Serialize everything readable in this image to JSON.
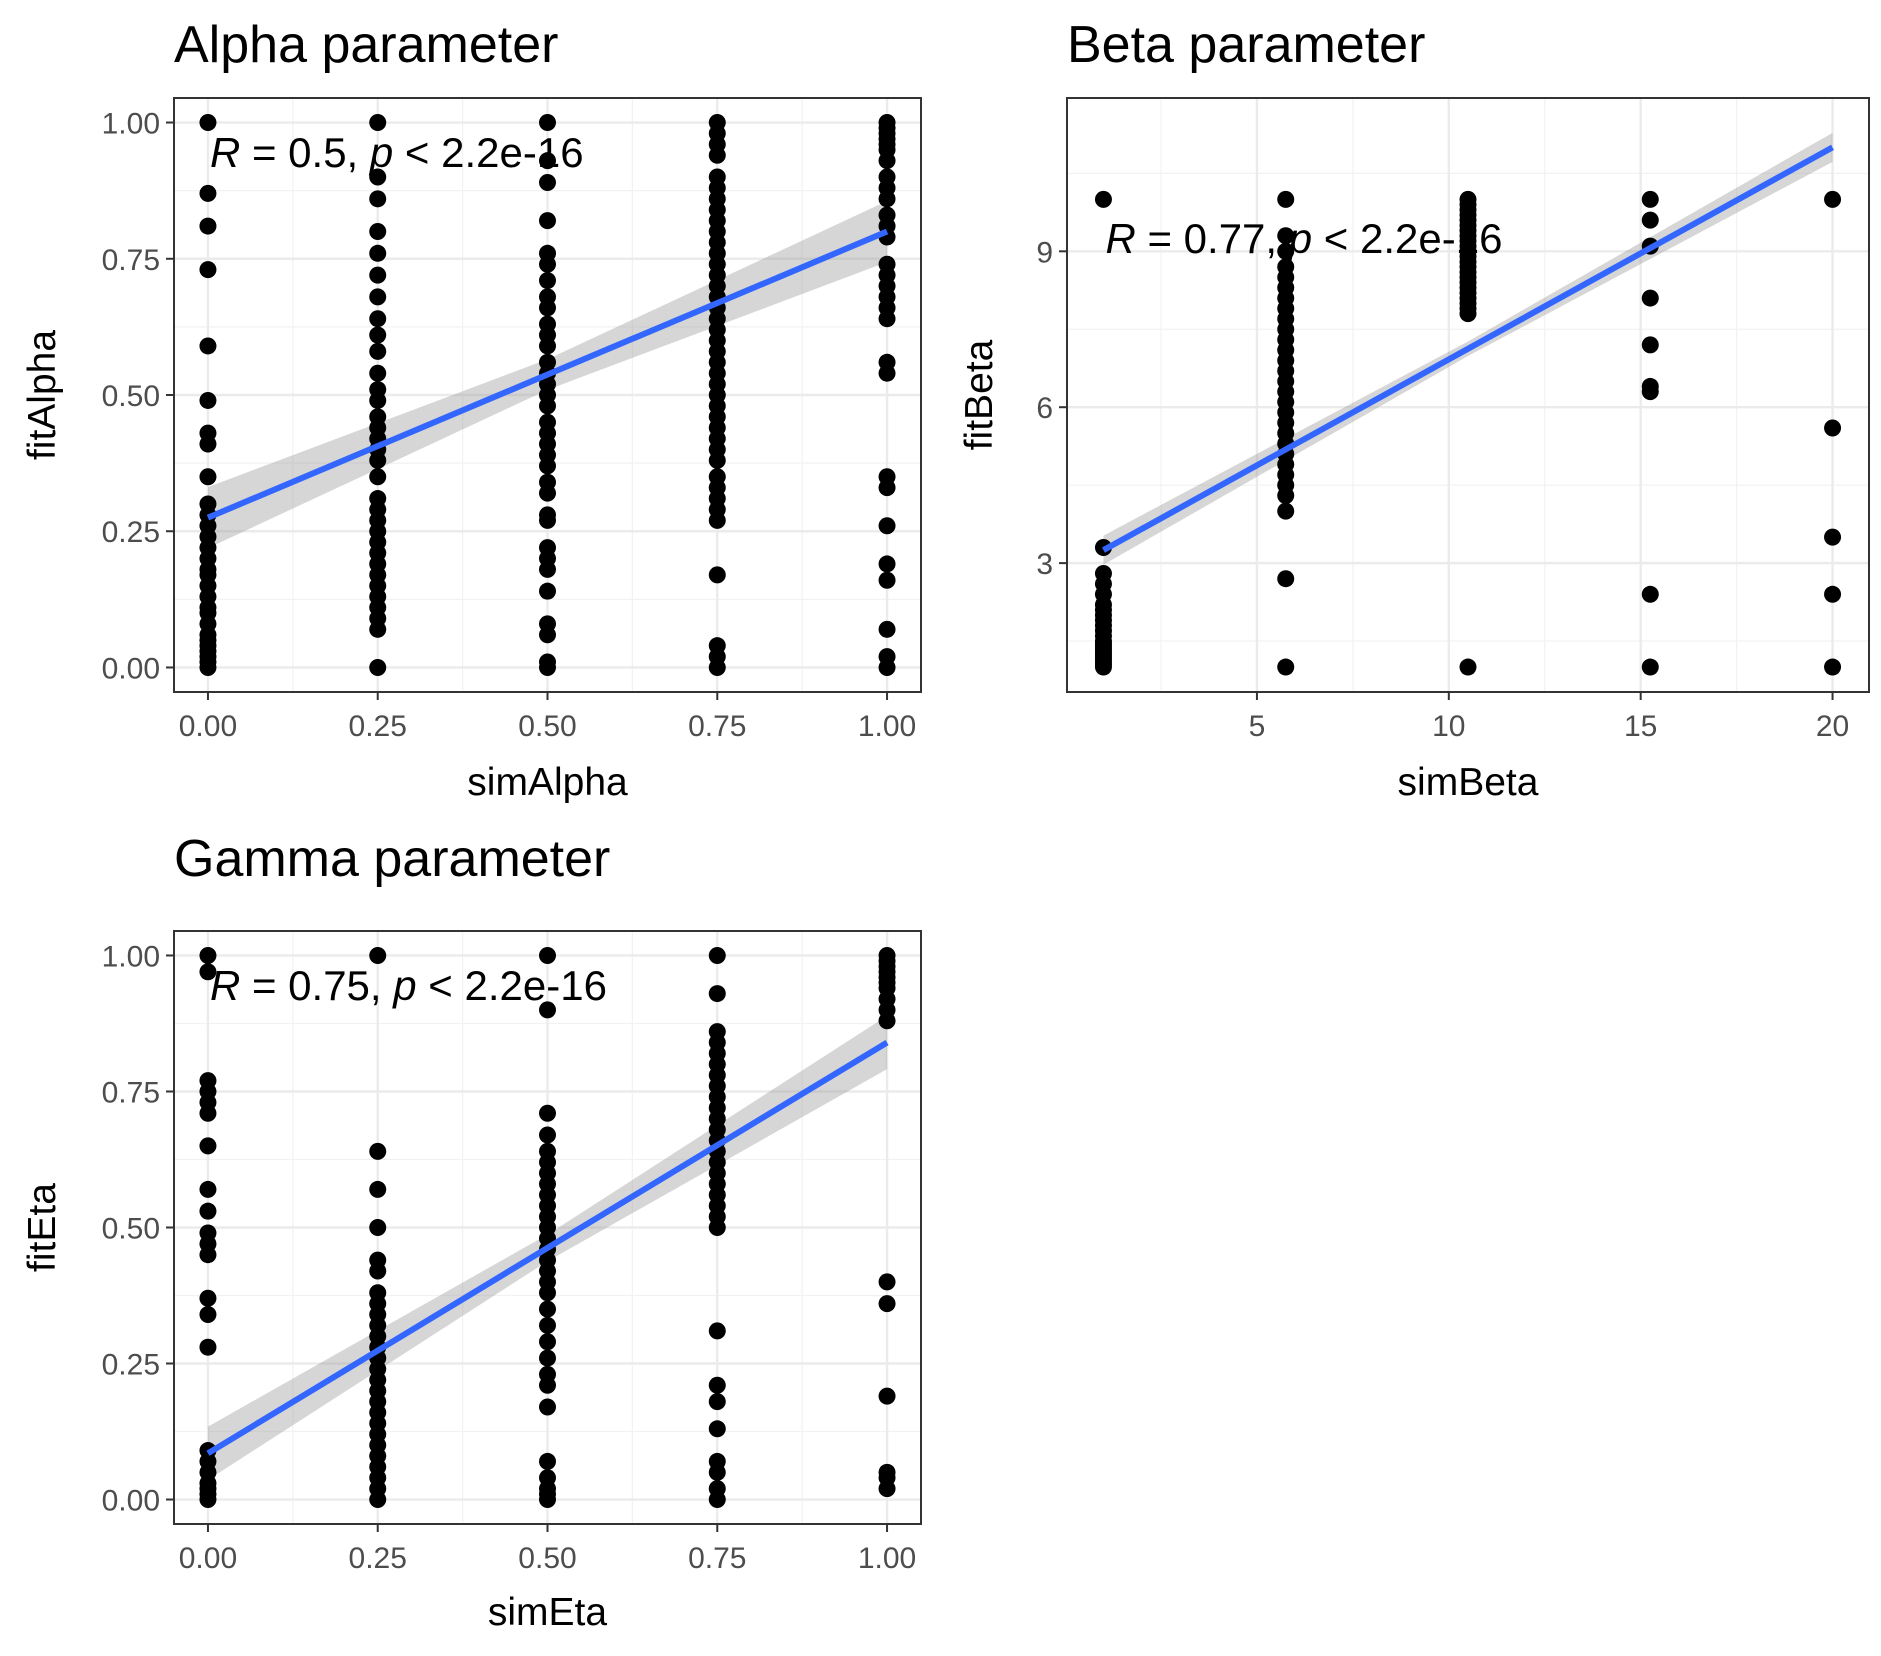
{
  "chart_data": [
    {
      "id": "alpha",
      "type": "scatter",
      "title": "Alpha parameter",
      "xlabel": "simAlpha",
      "ylabel": "fitAlpha",
      "xlim": [
        -0.05,
        1.05
      ],
      "ylim": [
        -0.045,
        1.045
      ],
      "xticks": [
        0,
        0.25,
        0.5,
        0.75,
        1.0
      ],
      "xtick_labels": [
        "0.00",
        "0.25",
        "0.50",
        "0.75",
        "1.00"
      ],
      "yticks": [
        0,
        0.25,
        0.5,
        0.75,
        1.0
      ],
      "ytick_labels": [
        "0.00",
        "0.25",
        "0.50",
        "0.75",
        "1.00"
      ],
      "grid": true,
      "stat_text": {
        "r_symbol": "R",
        "r_part": " = 0.5, ",
        "p_symbol": "p",
        "p_part": " < 2.2e-16",
        "x": 0.0,
        "y": 0.94
      },
      "fit": {
        "x0": 0.0,
        "y0": 0.275,
        "x1": 1.0,
        "y1": 0.8,
        "se": 0.04
      },
      "points": [
        {
          "x": 0.0,
          "y": [
            1.0,
            0.87,
            0.81,
            0.73,
            0.59,
            0.49,
            0.43,
            0.41,
            0.35,
            0.3,
            0.28,
            0.26,
            0.24,
            0.22,
            0.2,
            0.18,
            0.17,
            0.15,
            0.13,
            0.11,
            0.1,
            0.08,
            0.06,
            0.05,
            0.04,
            0.03,
            0.02,
            0.01,
            0.0
          ]
        },
        {
          "x": 0.25,
          "y": [
            1.0,
            0.9,
            0.86,
            0.8,
            0.76,
            0.72,
            0.68,
            0.64,
            0.61,
            0.58,
            0.54,
            0.51,
            0.49,
            0.46,
            0.44,
            0.42,
            0.4,
            0.38,
            0.35,
            0.31,
            0.29,
            0.27,
            0.25,
            0.23,
            0.21,
            0.19,
            0.17,
            0.15,
            0.13,
            0.11,
            0.09,
            0.07,
            0.0
          ]
        },
        {
          "x": 0.5,
          "y": [
            1.0,
            0.93,
            0.89,
            0.82,
            0.76,
            0.74,
            0.71,
            0.68,
            0.66,
            0.63,
            0.61,
            0.59,
            0.56,
            0.54,
            0.52,
            0.5,
            0.48,
            0.45,
            0.43,
            0.41,
            0.39,
            0.37,
            0.34,
            0.32,
            0.28,
            0.27,
            0.22,
            0.2,
            0.18,
            0.14,
            0.08,
            0.06,
            0.01,
            0.0
          ]
        },
        {
          "x": 0.75,
          "y": [
            1.0,
            0.98,
            0.96,
            0.94,
            0.9,
            0.88,
            0.86,
            0.84,
            0.82,
            0.8,
            0.78,
            0.76,
            0.74,
            0.72,
            0.7,
            0.68,
            0.66,
            0.64,
            0.62,
            0.6,
            0.58,
            0.56,
            0.54,
            0.52,
            0.5,
            0.48,
            0.46,
            0.44,
            0.42,
            0.4,
            0.38,
            0.35,
            0.33,
            0.31,
            0.29,
            0.27,
            0.17,
            0.04,
            0.02,
            0.0
          ]
        },
        {
          "x": 1.0,
          "y": [
            1.0,
            0.99,
            0.98,
            0.97,
            0.96,
            0.95,
            0.93,
            0.9,
            0.88,
            0.86,
            0.83,
            0.81,
            0.79,
            0.74,
            0.72,
            0.7,
            0.68,
            0.66,
            0.64,
            0.56,
            0.54,
            0.35,
            0.33,
            0.26,
            0.19,
            0.16,
            0.07,
            0.02,
            0.0
          ]
        }
      ]
    },
    {
      "id": "beta",
      "type": "scatter",
      "title": "Beta parameter",
      "xlabel": "simBeta",
      "ylabel": "fitBeta",
      "xlim": [
        0.05,
        20.95
      ],
      "ylim": [
        0.52,
        11.95
      ],
      "xticks": [
        5,
        10,
        15,
        20
      ],
      "xtick_labels": [
        "5",
        "10",
        "15",
        "20"
      ],
      "yticks": [
        3,
        6,
        9
      ],
      "ytick_labels": [
        "3",
        "6",
        "9"
      ],
      "grid": true,
      "stat_text": {
        "r_symbol": "R",
        "r_part": " = 0.77, ",
        "p_symbol": "p",
        "p_part": " < 2.2e-16",
        "x": 1.0,
        "y": 9.2
      },
      "fit": {
        "x0": 1.0,
        "y0": 3.25,
        "x1": 20.0,
        "y1": 11.0,
        "se": 0.2
      },
      "points": [
        {
          "x": 1.0,
          "y": [
            10.0,
            3.3,
            2.8,
            2.6,
            2.4,
            2.2,
            2.1,
            2.0,
            1.9,
            1.8,
            1.7,
            1.6,
            1.5,
            1.45,
            1.4,
            1.35,
            1.3,
            1.25,
            1.2,
            1.15,
            1.1,
            1.05,
            1.0
          ]
        },
        {
          "x": 5.75,
          "y": [
            10.0,
            9.3,
            9.0,
            8.7,
            8.5,
            8.3,
            8.1,
            7.9,
            7.7,
            7.5,
            7.3,
            7.1,
            6.9,
            6.7,
            6.5,
            6.3,
            6.1,
            5.9,
            5.7,
            5.5,
            5.3,
            5.1,
            4.9,
            4.7,
            4.5,
            4.3,
            4.0,
            2.7,
            1.0
          ]
        },
        {
          "x": 10.5,
          "y": [
            10.0,
            9.9,
            9.8,
            9.7,
            9.6,
            9.5,
            9.4,
            9.3,
            9.2,
            9.1,
            9.0,
            8.9,
            8.8,
            8.7,
            8.6,
            8.5,
            8.4,
            8.3,
            8.2,
            8.1,
            8.0,
            7.9,
            7.8,
            1.0
          ]
        },
        {
          "x": 15.25,
          "y": [
            10.0,
            9.6,
            9.1,
            8.1,
            7.2,
            6.4,
            6.3,
            2.4,
            1.0
          ]
        },
        {
          "x": 20.0,
          "y": [
            10.0,
            5.6,
            3.5,
            2.4,
            1.0
          ]
        }
      ]
    },
    {
      "id": "gamma",
      "type": "scatter",
      "title": "Gamma parameter",
      "xlabel": "simEta",
      "ylabel": "fitEta",
      "xlim": [
        -0.05,
        1.05
      ],
      "ylim": [
        -0.045,
        1.045
      ],
      "xticks": [
        0,
        0.25,
        0.5,
        0.75,
        1.0
      ],
      "xtick_labels": [
        "0.00",
        "0.25",
        "0.50",
        "0.75",
        "1.00"
      ],
      "yticks": [
        0,
        0.25,
        0.5,
        0.75,
        1.0
      ],
      "ytick_labels": [
        "0.00",
        "0.25",
        "0.50",
        "0.75",
        "1.00"
      ],
      "grid": true,
      "stat_text": {
        "r_symbol": "R",
        "r_part": " = 0.75, ",
        "p_symbol": "p",
        "p_part": " < 2.2e-16",
        "x": 0.0,
        "y": 0.94
      },
      "fit": {
        "x0": 0.0,
        "y0": 0.085,
        "x1": 1.0,
        "y1": 0.84,
        "se": 0.035
      },
      "points": [
        {
          "x": 0.0,
          "y": [
            1.0,
            0.97,
            0.77,
            0.75,
            0.73,
            0.71,
            0.65,
            0.57,
            0.53,
            0.49,
            0.47,
            0.45,
            0.37,
            0.34,
            0.28,
            0.09,
            0.07,
            0.05,
            0.03,
            0.02,
            0.01,
            0.0
          ]
        },
        {
          "x": 0.25,
          "y": [
            1.0,
            0.64,
            0.57,
            0.5,
            0.44,
            0.42,
            0.38,
            0.36,
            0.34,
            0.32,
            0.3,
            0.28,
            0.26,
            0.24,
            0.22,
            0.2,
            0.18,
            0.16,
            0.14,
            0.12,
            0.1,
            0.08,
            0.06,
            0.04,
            0.02,
            0.0
          ]
        },
        {
          "x": 0.5,
          "y": [
            1.0,
            0.9,
            0.71,
            0.67,
            0.64,
            0.62,
            0.6,
            0.58,
            0.56,
            0.54,
            0.52,
            0.5,
            0.48,
            0.46,
            0.44,
            0.42,
            0.4,
            0.38,
            0.35,
            0.32,
            0.29,
            0.26,
            0.23,
            0.21,
            0.17,
            0.07,
            0.04,
            0.02,
            0.01,
            0.0
          ]
        },
        {
          "x": 0.75,
          "y": [
            1.0,
            0.93,
            0.86,
            0.84,
            0.82,
            0.8,
            0.78,
            0.76,
            0.74,
            0.72,
            0.7,
            0.68,
            0.66,
            0.64,
            0.62,
            0.6,
            0.58,
            0.56,
            0.54,
            0.52,
            0.5,
            0.31,
            0.21,
            0.18,
            0.13,
            0.07,
            0.05,
            0.02,
            0.0
          ]
        },
        {
          "x": 1.0,
          "y": [
            1.0,
            0.99,
            0.98,
            0.97,
            0.96,
            0.95,
            0.94,
            0.92,
            0.9,
            0.88,
            0.4,
            0.36,
            0.19,
            0.05,
            0.04,
            0.02
          ]
        }
      ]
    }
  ]
}
